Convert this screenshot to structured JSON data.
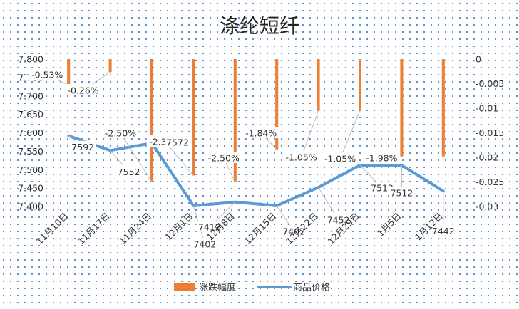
{
  "chart_data": {
    "type": "bar+line",
    "title": "涤纶短纤",
    "categories": [
      "11月10日",
      "11月17日",
      "11月24日",
      "12月1日",
      "12月8日",
      "12月15日",
      "12月22日",
      "12月29日",
      "1月5日",
      "1月12日"
    ],
    "series": [
      {
        "name": "涨跌幅度",
        "kind": "bar",
        "axis": "right",
        "color": "#ed7d31",
        "values": [
          -0.0053,
          -0.0026,
          -0.025,
          -0.0237,
          -0.025,
          -0.0184,
          -0.0105,
          -0.0105,
          -0.0198,
          -0.0198
        ],
        "labels": [
          "-0.53%",
          "-0.26%",
          "-2.50%",
          "-2.37%",
          "-2.50%",
          "-1.84%",
          "-1.05%",
          "-1.05%",
          "-1.98%",
          ""
        ]
      },
      {
        "name": "商品价格",
        "kind": "line",
        "axis": "left",
        "color": "#5b9bd5",
        "values": [
          7592,
          7552,
          7572,
          7402,
          7412,
          7402,
          7452,
          7512,
          7512,
          7442
        ],
        "labels": [
          "7592",
          "7552",
          "7572",
          "7402",
          "7412",
          "7402",
          "7452",
          "7512",
          "7512",
          "7442"
        ]
      }
    ],
    "y_left": {
      "min": 7400,
      "max": 7800,
      "ticks": [
        "7.800",
        "7.750",
        "7.700",
        "7.650",
        "7.600",
        "7.550",
        "7.500",
        "7.450",
        "7.400"
      ]
    },
    "y_right": {
      "min": -0.03,
      "max": 0,
      "ticks": [
        "0",
        "-0.005",
        "-0.01",
        "-0.015",
        "-0.02",
        "-0.025",
        "-0.03"
      ]
    },
    "legend": {
      "position": "bottom"
    },
    "grid": false
  }
}
